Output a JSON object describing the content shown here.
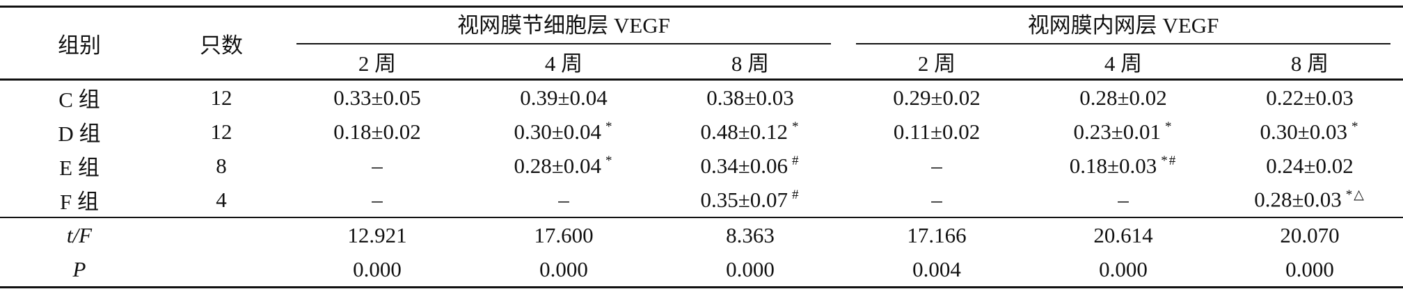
{
  "headers": {
    "group": "组别",
    "count": "只数",
    "gcl_title": "视网膜节细胞层 VEGF",
    "inl_title": "视网膜内网层 VEGF",
    "weeks": [
      "2 周",
      "4 周",
      "8 周",
      "2 周",
      "4 周",
      "8 周"
    ]
  },
  "rows": [
    {
      "group": "C 组",
      "n": "12",
      "cells": [
        {
          "v": "0.33±0.05",
          "m": ""
        },
        {
          "v": "0.39±0.04",
          "m": ""
        },
        {
          "v": "0.38±0.03",
          "m": ""
        },
        {
          "v": "0.29±0.02",
          "m": ""
        },
        {
          "v": "0.28±0.02",
          "m": ""
        },
        {
          "v": "0.22±0.03",
          "m": ""
        }
      ]
    },
    {
      "group": "D 组",
      "n": "12",
      "cells": [
        {
          "v": "0.18±0.02",
          "m": ""
        },
        {
          "v": "0.30±0.04",
          "m": "*"
        },
        {
          "v": "0.48±0.12",
          "m": "*"
        },
        {
          "v": "0.11±0.02",
          "m": ""
        },
        {
          "v": "0.23±0.01",
          "m": "*"
        },
        {
          "v": "0.30±0.03",
          "m": "*"
        }
      ]
    },
    {
      "group": "E 组",
      "n": "8",
      "cells": [
        {
          "v": "–",
          "m": ""
        },
        {
          "v": "0.28±0.04",
          "m": "*"
        },
        {
          "v": "0.34±0.06",
          "m": "#"
        },
        {
          "v": "–",
          "m": ""
        },
        {
          "v": "0.18±0.03",
          "m": "*#"
        },
        {
          "v": "0.24±0.02",
          "m": ""
        }
      ]
    },
    {
      "group": "F 组",
      "n": "4",
      "cells": [
        {
          "v": "–",
          "m": ""
        },
        {
          "v": "–",
          "m": ""
        },
        {
          "v": "0.35±0.07",
          "m": "#"
        },
        {
          "v": "–",
          "m": ""
        },
        {
          "v": "–",
          "m": ""
        },
        {
          "v": "0.28±0.03",
          "m": "*△"
        }
      ]
    }
  ],
  "stats": {
    "tf_label": "t/F",
    "tf": [
      "12.921",
      "17.600",
      "8.363",
      "17.166",
      "20.614",
      "20.070"
    ],
    "p_label": "P",
    "p": [
      "0.000",
      "0.000",
      "0.000",
      "0.004",
      "0.000",
      "0.000"
    ]
  }
}
